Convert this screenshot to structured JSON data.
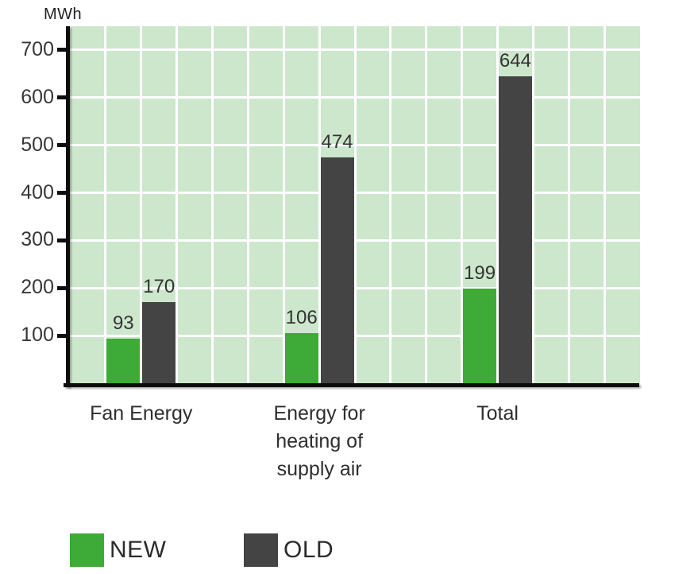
{
  "chart_data": {
    "type": "bar",
    "title": "",
    "ylabel": "MWh",
    "xlabel": "",
    "categories": [
      "Fan Energy",
      "Energy for heating of supply air",
      "Total"
    ],
    "series": [
      {
        "name": "NEW",
        "color": "#3eaa37",
        "values": [
          93,
          106,
          199
        ]
      },
      {
        "name": "OLD",
        "color": "#444444",
        "values": [
          170,
          474,
          644
        ]
      }
    ],
    "value_labels": {
      "NEW": [
        "93",
        "106",
        "199"
      ],
      "OLD": [
        "170",
        "474",
        "644"
      ]
    },
    "ylim": [
      0,
      750
    ],
    "yticks": [
      100,
      200,
      300,
      400,
      500,
      600,
      700
    ],
    "grid": true,
    "gridline_color": "#ffffff",
    "plot_background": "#cde7cd",
    "axis_color": "#0d0d0d",
    "text_color": "#333333",
    "legend_position": "bottom",
    "legend_labels": [
      "NEW",
      "OLD"
    ]
  }
}
